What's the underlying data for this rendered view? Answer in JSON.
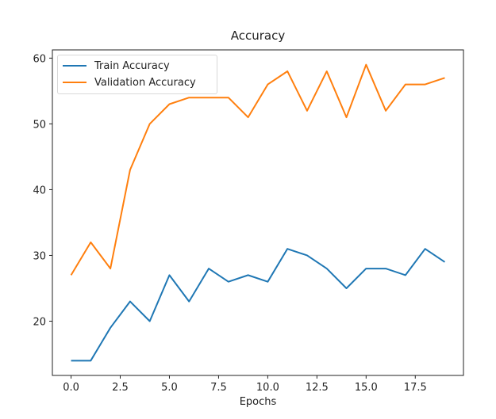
{
  "chart_data": {
    "type": "line",
    "title": "Accuracy",
    "xlabel": "Epochs",
    "ylabel": "",
    "x": [
      0,
      1,
      2,
      3,
      4,
      5,
      6,
      7,
      8,
      9,
      10,
      11,
      12,
      13,
      14,
      15,
      16,
      17,
      18,
      19
    ],
    "series": [
      {
        "name": "Train Accuracy",
        "color": "#1f77b4",
        "values": [
          14,
          14,
          19,
          23,
          20,
          27,
          23,
          28,
          26,
          27,
          26,
          31,
          30,
          28,
          25,
          28,
          28,
          27,
          31,
          29
        ]
      },
      {
        "name": "Validation Accuracy",
        "color": "#ff7f0e",
        "values": [
          27,
          32,
          28,
          43,
          50,
          53,
          54,
          54,
          54,
          51,
          56,
          58,
          52,
          58,
          51,
          59,
          52,
          56,
          56,
          57
        ]
      }
    ],
    "xticks": [
      "0.0",
      "2.5",
      "5.0",
      "7.5",
      "10.0",
      "12.5",
      "15.0",
      "17.5"
    ],
    "yticks": [
      "20",
      "30",
      "40",
      "50",
      "60"
    ],
    "xlim": [
      -0.95,
      19.95
    ],
    "ylim": [
      11.75,
      61.25
    ],
    "grid": false,
    "legend_position": "upper left"
  }
}
